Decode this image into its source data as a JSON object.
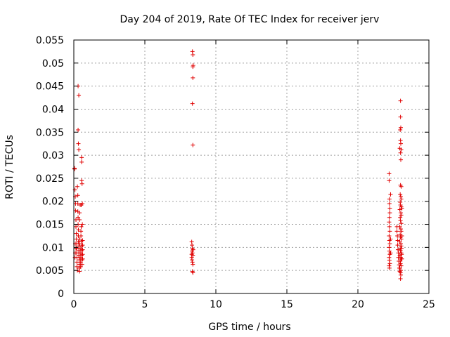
{
  "chart_data": {
    "type": "scatter",
    "title": "Day 204 of 2019, Rate Of TEC Index for receiver jerv",
    "xlabel": "GPS time / hours",
    "ylabel": "ROTI / TECUs",
    "xlim": [
      0,
      25
    ],
    "ylim": [
      0,
      0.055
    ],
    "x_ticks": [
      "0",
      "5",
      "10",
      "15",
      "20",
      "25"
    ],
    "y_ticks": [
      "0",
      "0.005",
      "0.01",
      "0.015",
      "0.02",
      "0.025",
      "0.03",
      "0.035",
      "0.04",
      "0.045",
      "0.05",
      "0.055"
    ],
    "grid": true,
    "marker": "+",
    "color": "#e00000",
    "series": [
      {
        "points": [
          [
            0.05,
            0.027
          ],
          [
            0.08,
            0.0225
          ],
          [
            0.1,
            0.021
          ],
          [
            0.12,
            0.0195
          ],
          [
            0.12,
            0.018
          ],
          [
            0.15,
            0.016
          ],
          [
            0.15,
            0.0145
          ],
          [
            0.18,
            0.013
          ],
          [
            0.18,
            0.0118
          ],
          [
            0.2,
            0.0108
          ],
          [
            0.2,
            0.0098
          ],
          [
            0.2,
            0.0088
          ],
          [
            0.22,
            0.0078
          ],
          [
            0.22,
            0.0068
          ],
          [
            0.22,
            0.0058
          ],
          [
            0.25,
            0.005
          ],
          [
            0.25,
            0.0232
          ],
          [
            0.28,
            0.0213
          ],
          [
            0.28,
            0.0195
          ],
          [
            0.28,
            0.0178
          ],
          [
            0.3,
            0.0165
          ],
          [
            0.3,
            0.015
          ],
          [
            0.32,
            0.0138
          ],
          [
            0.32,
            0.0125
          ],
          [
            0.32,
            0.0112
          ],
          [
            0.35,
            0.0103
          ],
          [
            0.35,
            0.0093
          ],
          [
            0.35,
            0.0083
          ],
          [
            0.38,
            0.0073
          ],
          [
            0.38,
            0.0063
          ],
          [
            0.38,
            0.0055
          ],
          [
            0.4,
            0.0048
          ],
          [
            0.42,
            0.0118
          ],
          [
            0.42,
            0.0108
          ],
          [
            0.45,
            0.0098
          ],
          [
            0.45,
            0.0088
          ],
          [
            0.45,
            0.0078
          ],
          [
            0.48,
            0.0068
          ],
          [
            0.48,
            0.0058
          ],
          [
            0.5,
            0.0135
          ],
          [
            0.5,
            0.0125
          ],
          [
            0.52,
            0.0145
          ],
          [
            0.52,
            0.0113
          ],
          [
            0.55,
            0.0103
          ],
          [
            0.55,
            0.0093
          ],
          [
            0.55,
            0.0083
          ],
          [
            0.58,
            0.0073
          ],
          [
            0.58,
            0.0063
          ],
          [
            0.6,
            0.015
          ],
          [
            0.6,
            0.0195
          ],
          [
            0.62,
            0.0115
          ],
          [
            0.62,
            0.0105
          ],
          [
            0.62,
            0.0095
          ],
          [
            0.62,
            0.0085
          ],
          [
            0.62,
            0.0075
          ],
          [
            0.3,
            0.045
          ],
          [
            0.35,
            0.043
          ],
          [
            0.3,
            0.0355
          ],
          [
            0.32,
            0.0325
          ],
          [
            0.35,
            0.0312
          ],
          [
            0.05,
            0.0272
          ],
          [
            0.55,
            0.0295
          ],
          [
            0.55,
            0.0285
          ],
          [
            0.55,
            0.0245
          ],
          [
            0.58,
            0.0238
          ],
          [
            0.52,
            0.0192
          ],
          [
            0.45,
            0.0192
          ],
          [
            0.4,
            0.0175
          ],
          [
            0.4,
            0.016
          ],
          [
            0.15,
            0.0098
          ],
          [
            0.1,
            0.0108
          ],
          [
            0.1,
            0.0088
          ],
          [
            0.08,
            0.0078
          ],
          [
            8.35,
            0.0525
          ],
          [
            8.38,
            0.0518
          ],
          [
            8.4,
            0.0495
          ],
          [
            8.38,
            0.0492
          ],
          [
            8.38,
            0.0468
          ],
          [
            8.35,
            0.0412
          ],
          [
            8.38,
            0.0322
          ],
          [
            8.3,
            0.0112
          ],
          [
            8.32,
            0.0105
          ],
          [
            8.35,
            0.0098
          ],
          [
            8.32,
            0.0092
          ],
          [
            8.35,
            0.0088
          ],
          [
            8.38,
            0.0083
          ],
          [
            8.3,
            0.0078
          ],
          [
            8.32,
            0.0073
          ],
          [
            8.35,
            0.0068
          ],
          [
            8.38,
            0.0063
          ],
          [
            8.3,
            0.0085
          ],
          [
            8.4,
            0.0095
          ],
          [
            8.35,
            0.0048
          ],
          [
            8.38,
            0.0045
          ],
          [
            22.2,
            0.026
          ],
          [
            22.2,
            0.0245
          ],
          [
            22.22,
            0.0205
          ],
          [
            22.22,
            0.0195
          ],
          [
            22.25,
            0.0185
          ],
          [
            22.25,
            0.0175
          ],
          [
            22.22,
            0.0165
          ],
          [
            22.2,
            0.0155
          ],
          [
            22.22,
            0.0145
          ],
          [
            22.25,
            0.0135
          ],
          [
            22.2,
            0.0125
          ],
          [
            22.22,
            0.0115
          ],
          [
            22.25,
            0.0108
          ],
          [
            22.2,
            0.01
          ],
          [
            22.22,
            0.0092
          ],
          [
            22.25,
            0.0085
          ],
          [
            22.2,
            0.0078
          ],
          [
            22.22,
            0.0072
          ],
          [
            22.25,
            0.0065
          ],
          [
            22.2,
            0.006
          ],
          [
            22.22,
            0.0055
          ],
          [
            22.3,
            0.0215
          ],
          [
            22.3,
            0.0118
          ],
          [
            22.3,
            0.0088
          ],
          [
            22.75,
            0.0145
          ],
          [
            22.75,
            0.0135
          ],
          [
            22.78,
            0.0125
          ],
          [
            22.8,
            0.0115
          ],
          [
            22.8,
            0.0105
          ],
          [
            22.82,
            0.0095
          ],
          [
            22.85,
            0.0088
          ],
          [
            22.85,
            0.0078
          ],
          [
            22.88,
            0.007
          ],
          [
            22.9,
            0.0062
          ],
          [
            22.92,
            0.0055
          ],
          [
            22.95,
            0.0048
          ],
          [
            23.0,
            0.0418
          ],
          [
            23.0,
            0.0383
          ],
          [
            23.02,
            0.036
          ],
          [
            22.98,
            0.0355
          ],
          [
            23.0,
            0.0332
          ],
          [
            23.02,
            0.0325
          ],
          [
            22.95,
            0.0315
          ],
          [
            23.05,
            0.0312
          ],
          [
            23.0,
            0.0305
          ],
          [
            23.02,
            0.029
          ],
          [
            23.0,
            0.0235
          ],
          [
            23.05,
            0.0232
          ],
          [
            22.98,
            0.0215
          ],
          [
            23.02,
            0.021
          ],
          [
            23.05,
            0.0205
          ],
          [
            22.98,
            0.0198
          ],
          [
            23.0,
            0.0192
          ],
          [
            23.05,
            0.0188
          ],
          [
            22.95,
            0.0182
          ],
          [
            23.02,
            0.0175
          ],
          [
            23.05,
            0.017
          ],
          [
            22.98,
            0.0165
          ],
          [
            23.0,
            0.0158
          ],
          [
            23.05,
            0.0152
          ],
          [
            22.95,
            0.0145
          ],
          [
            23.02,
            0.014
          ],
          [
            23.05,
            0.0135
          ],
          [
            22.98,
            0.0128
          ],
          [
            23.0,
            0.0122
          ],
          [
            23.05,
            0.0118
          ],
          [
            22.95,
            0.0112
          ],
          [
            23.02,
            0.0108
          ],
          [
            23.05,
            0.0103
          ],
          [
            22.98,
            0.0098
          ],
          [
            23.0,
            0.0093
          ],
          [
            23.05,
            0.0088
          ],
          [
            22.95,
            0.0083
          ],
          [
            23.02,
            0.0078
          ],
          [
            23.05,
            0.0075
          ],
          [
            22.98,
            0.007
          ],
          [
            23.0,
            0.0065
          ],
          [
            23.05,
            0.006
          ],
          [
            22.95,
            0.0055
          ],
          [
            23.02,
            0.005
          ],
          [
            23.0,
            0.0045
          ],
          [
            23.02,
            0.004
          ],
          [
            23.0,
            0.0032
          ],
          [
            23.08,
            0.0098
          ],
          [
            23.08,
            0.0085
          ],
          [
            23.1,
            0.0075
          ],
          [
            23.1,
            0.0125
          ],
          [
            23.1,
            0.0185
          ]
        ]
      }
    ]
  }
}
